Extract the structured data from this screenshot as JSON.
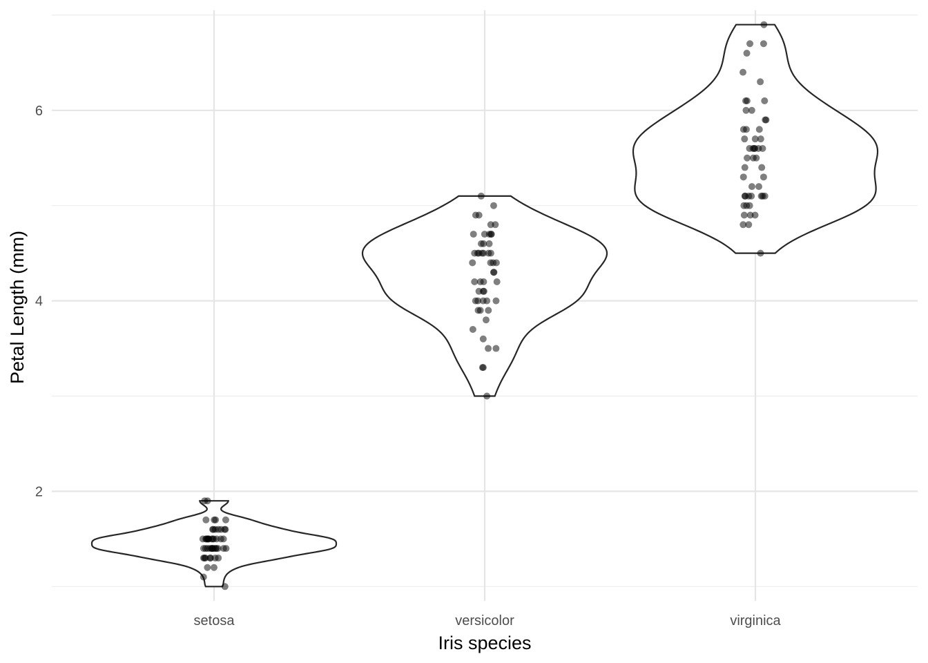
{
  "chart_data": {
    "type": "violin",
    "xlabel": "Iris species",
    "ylabel": "Petal Length (mm)",
    "categories": [
      "setosa",
      "versicolor",
      "virginica"
    ],
    "yticks": [
      2,
      4,
      6
    ],
    "ylim": [
      0.85,
      7.05
    ],
    "grid": true,
    "point_color": "#000000",
    "violin_outline_color": "#262626",
    "series": [
      {
        "category": "setosa",
        "values": [
          1.4,
          1.4,
          1.3,
          1.5,
          1.4,
          1.7,
          1.4,
          1.5,
          1.4,
          1.5,
          1.5,
          1.6,
          1.4,
          1.1,
          1.2,
          1.5,
          1.3,
          1.4,
          1.7,
          1.5,
          1.7,
          1.5,
          1.0,
          1.7,
          1.9,
          1.6,
          1.6,
          1.5,
          1.4,
          1.6,
          1.6,
          1.5,
          1.5,
          1.4,
          1.5,
          1.2,
          1.3,
          1.4,
          1.3,
          1.5,
          1.3,
          1.3,
          1.3,
          1.6,
          1.9,
          1.4,
          1.6,
          1.4,
          1.5,
          1.4
        ]
      },
      {
        "category": "versicolor",
        "values": [
          4.7,
          4.5,
          4.9,
          4.0,
          4.6,
          4.5,
          4.7,
          3.3,
          4.6,
          3.9,
          3.5,
          4.2,
          4.0,
          4.7,
          3.6,
          4.4,
          4.5,
          4.1,
          4.5,
          3.9,
          4.8,
          4.0,
          4.9,
          4.7,
          4.3,
          4.4,
          4.8,
          5.0,
          4.5,
          3.5,
          3.8,
          3.7,
          3.9,
          5.1,
          4.5,
          4.5,
          4.7,
          4.4,
          4.1,
          4.0,
          4.4,
          4.6,
          4.0,
          3.3,
          4.2,
          4.2,
          4.2,
          4.3,
          3.0,
          4.1
        ]
      },
      {
        "category": "virginica",
        "values": [
          6.0,
          5.1,
          5.9,
          5.6,
          5.8,
          6.6,
          4.5,
          6.3,
          5.8,
          6.1,
          5.1,
          5.3,
          5.5,
          5.0,
          5.1,
          5.3,
          5.5,
          6.7,
          6.9,
          5.0,
          5.7,
          4.9,
          6.7,
          4.9,
          5.7,
          6.0,
          4.8,
          4.9,
          5.6,
          5.8,
          6.1,
          6.4,
          5.6,
          5.1,
          5.6,
          6.1,
          5.6,
          5.5,
          4.8,
          5.4,
          5.6,
          5.1,
          5.1,
          5.9,
          5.7,
          5.2,
          5.0,
          5.2,
          5.4,
          5.1
        ]
      }
    ]
  }
}
